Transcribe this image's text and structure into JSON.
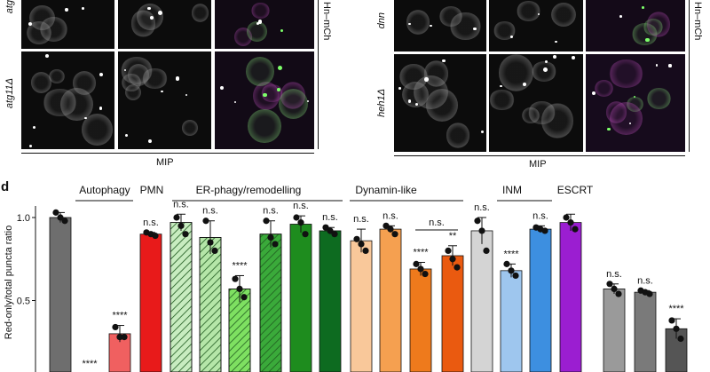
{
  "figure": {
    "panel_letter": "d",
    "left_block": {
      "row_labels": [
        "atg",
        "atg11Δ"
      ],
      "side_label": "Hn–mCh",
      "caption": "MIP"
    },
    "right_block": {
      "row_labels": [
        "dnn",
        "heh1Δ"
      ],
      "side_label": "Hn–mCh",
      "caption": "MIP"
    }
  },
  "chart_data": {
    "type": "bar",
    "ylabel": "Red-only/total puncta ratio",
    "ylim": [
      0,
      1.1
    ],
    "yticks": [
      0.5,
      1.0
    ],
    "ytick_labels": [
      "0.5",
      "1.0"
    ],
    "groups": [
      {
        "label": "Autophagy"
      },
      {
        "label": "PMN"
      },
      {
        "label": "ER-phagy/remodelling"
      },
      {
        "label": "Dynamin-like"
      },
      {
        "label": "INM"
      },
      {
        "label": "ESCRT"
      }
    ],
    "bars": [
      {
        "value": 1.0,
        "err": 0.03,
        "sig": "",
        "color": "#6e6e6e",
        "hatch": false,
        "points": [
          1.03,
          1.0,
          0.98
        ]
      },
      {
        "value": 0.0,
        "err": 0.0,
        "sig": "****",
        "color": "#e8262b",
        "hatch": false,
        "points": [
          0.0,
          0.0,
          0.0
        ]
      },
      {
        "value": 0.3,
        "err": 0.05,
        "sig": "****",
        "color": "#f06060",
        "hatch": false,
        "points": [
          0.34,
          0.28,
          0.28
        ]
      },
      {
        "value": 0.9,
        "err": 0.01,
        "sig": "n.s.",
        "color": "#e81a1a",
        "hatch": false,
        "points": [
          0.91,
          0.9,
          0.89
        ]
      },
      {
        "value": 0.97,
        "err": 0.05,
        "sig": "n.s.",
        "color": "#c8ecc0",
        "hatch": true,
        "points": [
          1.0,
          0.95,
          0.9
        ]
      },
      {
        "value": 0.88,
        "err": 0.1,
        "sig": "n.s.",
        "color": "#b5e6a8",
        "hatch": true,
        "points": [
          0.98,
          0.85,
          0.8
        ]
      },
      {
        "value": 0.57,
        "err": 0.08,
        "sig": "****",
        "color": "#7ee061",
        "hatch": true,
        "points": [
          0.63,
          0.57,
          0.52
        ]
      },
      {
        "value": 0.9,
        "err": 0.08,
        "sig": "n.s.",
        "color": "#3aaa3a",
        "hatch": true,
        "points": [
          0.98,
          0.88,
          0.84
        ]
      },
      {
        "value": 0.96,
        "err": 0.05,
        "sig": "n.s.",
        "color": "#1e8c1e",
        "hatch": false,
        "points": [
          1.0,
          0.97,
          0.9
        ]
      },
      {
        "value": 0.92,
        "err": 0.02,
        "sig": "n.s.",
        "color": "#0d6b20",
        "hatch": false,
        "points": [
          0.94,
          0.92,
          0.9
        ]
      },
      {
        "value": 0.86,
        "err": 0.07,
        "sig": "n.s.",
        "color": "#f9c89a",
        "hatch": false,
        "points": [
          0.87,
          0.84,
          0.8
        ]
      },
      {
        "value": 0.93,
        "err": 0.02,
        "sig": "n.s.",
        "color": "#f5a050",
        "hatch": false,
        "points": [
          0.95,
          0.93,
          0.9
        ]
      },
      {
        "value": 0.69,
        "err": 0.04,
        "sig": "****",
        "color": "#ee7a1c",
        "hatch": false,
        "points": [
          0.72,
          0.69,
          0.66
        ]
      },
      {
        "value": 0.77,
        "err": 0.06,
        "sig": "**",
        "color": "#ea5a10",
        "hatch": false,
        "points": [
          0.8,
          0.75,
          0.7
        ]
      },
      {
        "value": 0.92,
        "err": 0.08,
        "sig": "n.s.",
        "color": "#d4d4d4",
        "hatch": false,
        "points": [
          0.98,
          0.92,
          0.8
        ]
      },
      {
        "value": 0.68,
        "err": 0.04,
        "sig": "****",
        "color": "#9ec6ee",
        "hatch": false,
        "points": [
          0.72,
          0.68,
          0.65
        ]
      },
      {
        "value": 0.93,
        "err": 0.02,
        "sig": "n.s.",
        "color": "#3d8fe0",
        "hatch": false,
        "points": [
          0.94,
          0.93,
          0.92
        ]
      },
      {
        "value": 0.97,
        "err": 0.05,
        "sig": "",
        "color": "#9b1ed1",
        "hatch": false,
        "points": [
          1.0,
          0.97,
          0.93
        ]
      },
      {
        "value": 0.57,
        "err": 0.03,
        "sig": "n.s.",
        "color": "#9a9a9a",
        "hatch": false,
        "points": [
          0.6,
          0.57,
          0.54
        ]
      },
      {
        "value": 0.55,
        "err": 0.01,
        "sig": "n.s.",
        "color": "#7a7a7a",
        "hatch": false,
        "points": [
          0.56,
          0.55,
          0.54
        ]
      },
      {
        "value": 0.33,
        "err": 0.06,
        "sig": "****",
        "color": "#555555",
        "hatch": false,
        "points": [
          0.38,
          0.33,
          0.27
        ]
      }
    ],
    "bracket_label": "n.s."
  }
}
